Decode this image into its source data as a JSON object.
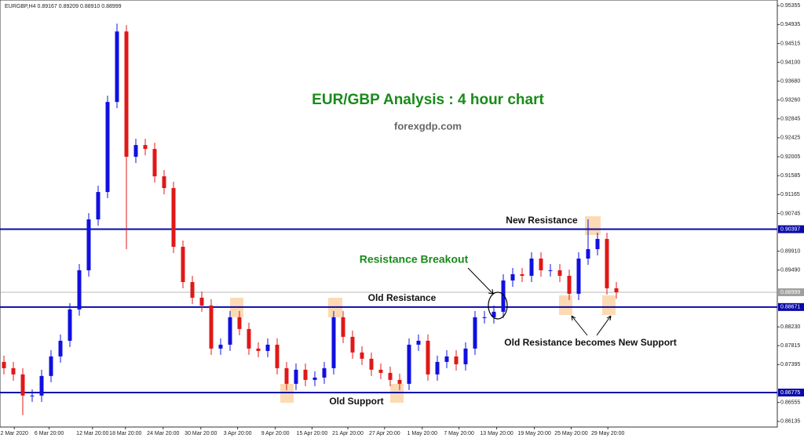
{
  "chart_data": {
    "type": "candlestick",
    "header": "EURGBP,H4  0.89167 0.89209 0.88910 0.88999",
    "title": "EUR/GBP Analysis : 4 hour chart",
    "subtitle": "forexgdp.com",
    "annotations": {
      "new_resistance": "New Resistance",
      "breakout": "Resistance Breakout",
      "old_resistance": "Old Resistance",
      "new_support": "Old Resistance becomes New Support",
      "old_support": "Old Support"
    },
    "up_color": "#1010e0",
    "down_color": "#e01818",
    "ylim": [
      0.8601,
      0.9548
    ],
    "yticks": [
      {
        "value": 0.95355,
        "label": "0.95355"
      },
      {
        "value": 0.94935,
        "label": "0.94935"
      },
      {
        "value": 0.94515,
        "label": "0.94515"
      },
      {
        "value": 0.941,
        "label": "0.94100"
      },
      {
        "value": 0.9368,
        "label": "0.93680"
      },
      {
        "value": 0.9326,
        "label": "0.93260"
      },
      {
        "value": 0.92845,
        "label": "0.92845"
      },
      {
        "value": 0.92425,
        "label": "0.92425"
      },
      {
        "value": 0.92005,
        "label": "0.92005"
      },
      {
        "value": 0.91585,
        "label": "0.91585"
      },
      {
        "value": 0.91165,
        "label": "0.91165"
      },
      {
        "value": 0.90745,
        "label": "0.90745"
      },
      {
        "value": 0.8991,
        "label": "0.89910"
      },
      {
        "value": 0.8949,
        "label": "0.89490"
      },
      {
        "value": 0.8823,
        "label": "0.88230"
      },
      {
        "value": 0.87815,
        "label": "0.87815"
      },
      {
        "value": 0.87395,
        "label": "0.87395"
      },
      {
        "value": 0.86555,
        "label": "0.86555"
      },
      {
        "value": 0.86135,
        "label": "0.86135"
      }
    ],
    "levels": [
      {
        "value": 0.90397,
        "label": "0.90397",
        "color": "#0a0aa8"
      },
      {
        "value": 0.88999,
        "label": "0.88999",
        "color": "#a0a0a0"
      },
      {
        "value": 0.88671,
        "label": "0.88671",
        "color": "#0a0aa8"
      },
      {
        "value": 0.86775,
        "label": "0.86775",
        "color": "#0a0aa8"
      }
    ],
    "xticks": [
      {
        "value": 1.1,
        "label": "2 Mar 2020"
      },
      {
        "value": 4.8,
        "label": "6 Mar 20:00"
      },
      {
        "value": 9.4,
        "label": "12 Mar 20:00"
      },
      {
        "value": 12.9,
        "label": "18 Mar 20:00"
      },
      {
        "value": 16.9,
        "label": "24 Mar 20:00"
      },
      {
        "value": 20.9,
        "label": "30 Mar 20:00"
      },
      {
        "value": 24.8,
        "label": "3 Apr 20:00"
      },
      {
        "value": 28.8,
        "label": "9 Apr 20:00"
      },
      {
        "value": 32.7,
        "label": "15 Apr 20:00"
      },
      {
        "value": 36.5,
        "label": "21 Apr 20:00"
      },
      {
        "value": 40.4,
        "label": "27 Apr 20:00"
      },
      {
        "value": 44.4,
        "label": "1 May 20:00"
      },
      {
        "value": 48.3,
        "label": "7 May 20:00"
      },
      {
        "value": 52.3,
        "label": "13 May 20:00"
      },
      {
        "value": 56.3,
        "label": "19 May 20:00"
      },
      {
        "value": 60.2,
        "label": "25 May 20:00"
      },
      {
        "value": 64.1,
        "label": "29 May 20:00"
      }
    ],
    "open": [
      0.87454,
      0.87315,
      0.87177,
      0.86708,
      0.86708,
      0.87142,
      0.87576,
      0.87923,
      0.88618,
      0.89486,
      0.90615,
      0.91222,
      0.93219,
      0.94782,
      0.92004,
      0.92264,
      0.92177,
      0.9157,
      0.91309,
      0.90007,
      0.89225,
      0.88878,
      0.88705,
      0.8775,
      0.87836,
      0.88444,
      0.88184,
      0.8775,
      0.87697,
      0.87836,
      0.87315,
      0.86968,
      0.87281,
      0.87055,
      0.87107,
      0.87315,
      0.88444,
      0.8801,
      0.87663,
      0.87524,
      0.87281,
      0.87211,
      0.87055,
      0.86968,
      0.87836,
      0.87923,
      0.87177,
      0.87454,
      0.87576,
      0.87402,
      0.8775,
      0.88444,
      0.88444,
      0.88566,
      0.8926,
      0.89399,
      0.89364,
      0.89746,
      0.89486,
      0.89486,
      0.89364,
      0.88965,
      0.89746,
      0.89955,
      0.90181,
      0.89087
    ],
    "high": [
      0.87593,
      0.87454,
      0.87316,
      0.86847,
      0.87281,
      0.87715,
      0.88062,
      0.88757,
      0.89625,
      0.90754,
      0.91361,
      0.93358,
      0.94956,
      0.94921,
      0.92403,
      0.92403,
      0.92316,
      0.91709,
      0.91448,
      0.90146,
      0.89364,
      0.89017,
      0.88844,
      0.87975,
      0.88583,
      0.88583,
      0.88323,
      0.87889,
      0.87975,
      0.87975,
      0.87454,
      0.8742,
      0.8742,
      0.87246,
      0.87454,
      0.88583,
      0.88583,
      0.88149,
      0.87802,
      0.87663,
      0.8742,
      0.8735,
      0.87194,
      0.87975,
      0.88062,
      0.88062,
      0.87593,
      0.87715,
      0.87715,
      0.87889,
      0.88583,
      0.88583,
      0.88705,
      0.89399,
      0.89538,
      0.89538,
      0.89885,
      0.89885,
      0.89625,
      0.89625,
      0.89503,
      0.89885,
      0.90615,
      0.9032,
      0.9032,
      0.89226
    ],
    "low": [
      0.87176,
      0.87038,
      0.86274,
      0.86569,
      0.86569,
      0.87003,
      0.87437,
      0.87784,
      0.88479,
      0.89347,
      0.90476,
      0.91083,
      0.9308,
      0.89955,
      0.91865,
      0.92038,
      0.91431,
      0.9117,
      0.89868,
      0.89086,
      0.88739,
      0.88566,
      0.87611,
      0.87611,
      0.87697,
      0.88045,
      0.87611,
      0.87558,
      0.87558,
      0.87176,
      0.86829,
      0.86829,
      0.86916,
      0.86916,
      0.86968,
      0.87176,
      0.87871,
      0.87524,
      0.87385,
      0.87142,
      0.87072,
      0.86916,
      0.86829,
      0.86829,
      0.87697,
      0.87038,
      0.87038,
      0.87315,
      0.87263,
      0.87263,
      0.87611,
      0.88305,
      0.88305,
      0.88427,
      0.89121,
      0.89225,
      0.89225,
      0.89347,
      0.89347,
      0.89225,
      0.88826,
      0.88826,
      0.89607,
      0.89816,
      0.88948,
      0.8886
    ],
    "close": [
      0.87315,
      0.87177,
      0.86708,
      0.86708,
      0.87142,
      0.87576,
      0.87923,
      0.88618,
      0.89486,
      0.90615,
      0.91222,
      0.93219,
      0.94782,
      0.92004,
      0.92264,
      0.92177,
      0.9157,
      0.91309,
      0.90007,
      0.89225,
      0.88878,
      0.88705,
      0.8775,
      0.87836,
      0.88444,
      0.88184,
      0.8775,
      0.87697,
      0.87836,
      0.87315,
      0.86968,
      0.87281,
      0.87055,
      0.87107,
      0.87315,
      0.88444,
      0.8801,
      0.87663,
      0.87524,
      0.87281,
      0.87211,
      0.87055,
      0.86968,
      0.87836,
      0.87923,
      0.87177,
      0.87454,
      0.87576,
      0.87402,
      0.8775,
      0.88444,
      0.88444,
      0.88566,
      0.8926,
      0.89399,
      0.89364,
      0.89746,
      0.89486,
      0.89486,
      0.89364,
      0.88965,
      0.89746,
      0.89955,
      0.90181,
      0.89087,
      0.88999
    ]
  }
}
